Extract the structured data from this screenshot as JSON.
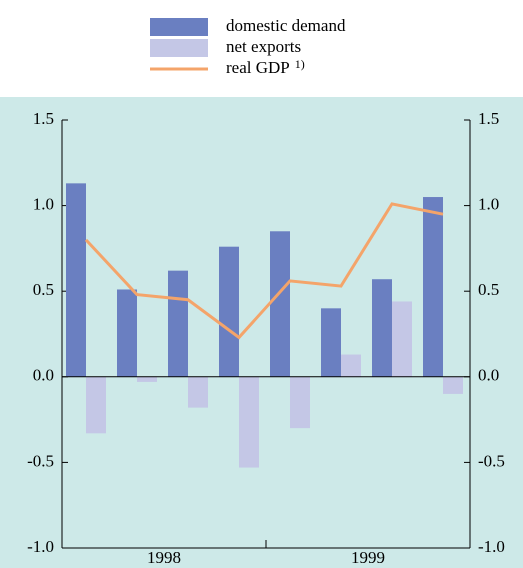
{
  "chart_data": {
    "type": "bar_line",
    "categories": [
      null,
      null,
      null,
      null,
      null,
      null,
      null,
      null
    ],
    "year_labels": [
      "1998",
      "1999"
    ],
    "series": [
      {
        "name": "domestic demand",
        "color": "#6a7fc1",
        "kind": "bar",
        "values": [
          1.13,
          0.51,
          0.62,
          0.76,
          0.85,
          0.4,
          0.57,
          1.05
        ]
      },
      {
        "name": "net exports",
        "color": "#c4c7e6",
        "kind": "bar",
        "values": [
          -0.33,
          -0.03,
          -0.18,
          -0.53,
          -0.3,
          0.13,
          0.44,
          -0.1
        ]
      },
      {
        "name": "real GDP",
        "name_note": "1)",
        "color": "#f4a46a",
        "kind": "line",
        "values": [
          0.8,
          0.48,
          0.45,
          0.23,
          0.56,
          0.53,
          1.01,
          0.95
        ]
      }
    ],
    "ylim": [
      -1.0,
      1.5
    ],
    "yticks": [
      {
        "value": -1.0,
        "label": "-1.0"
      },
      {
        "value": -0.5,
        "label": "-0.5"
      },
      {
        "value": 0.0,
        "label": "0.0"
      },
      {
        "value": 0.5,
        "label": "0.5"
      },
      {
        "value": 1.0,
        "label": "1.0"
      },
      {
        "value": 1.5,
        "label": "1.5"
      }
    ]
  }
}
